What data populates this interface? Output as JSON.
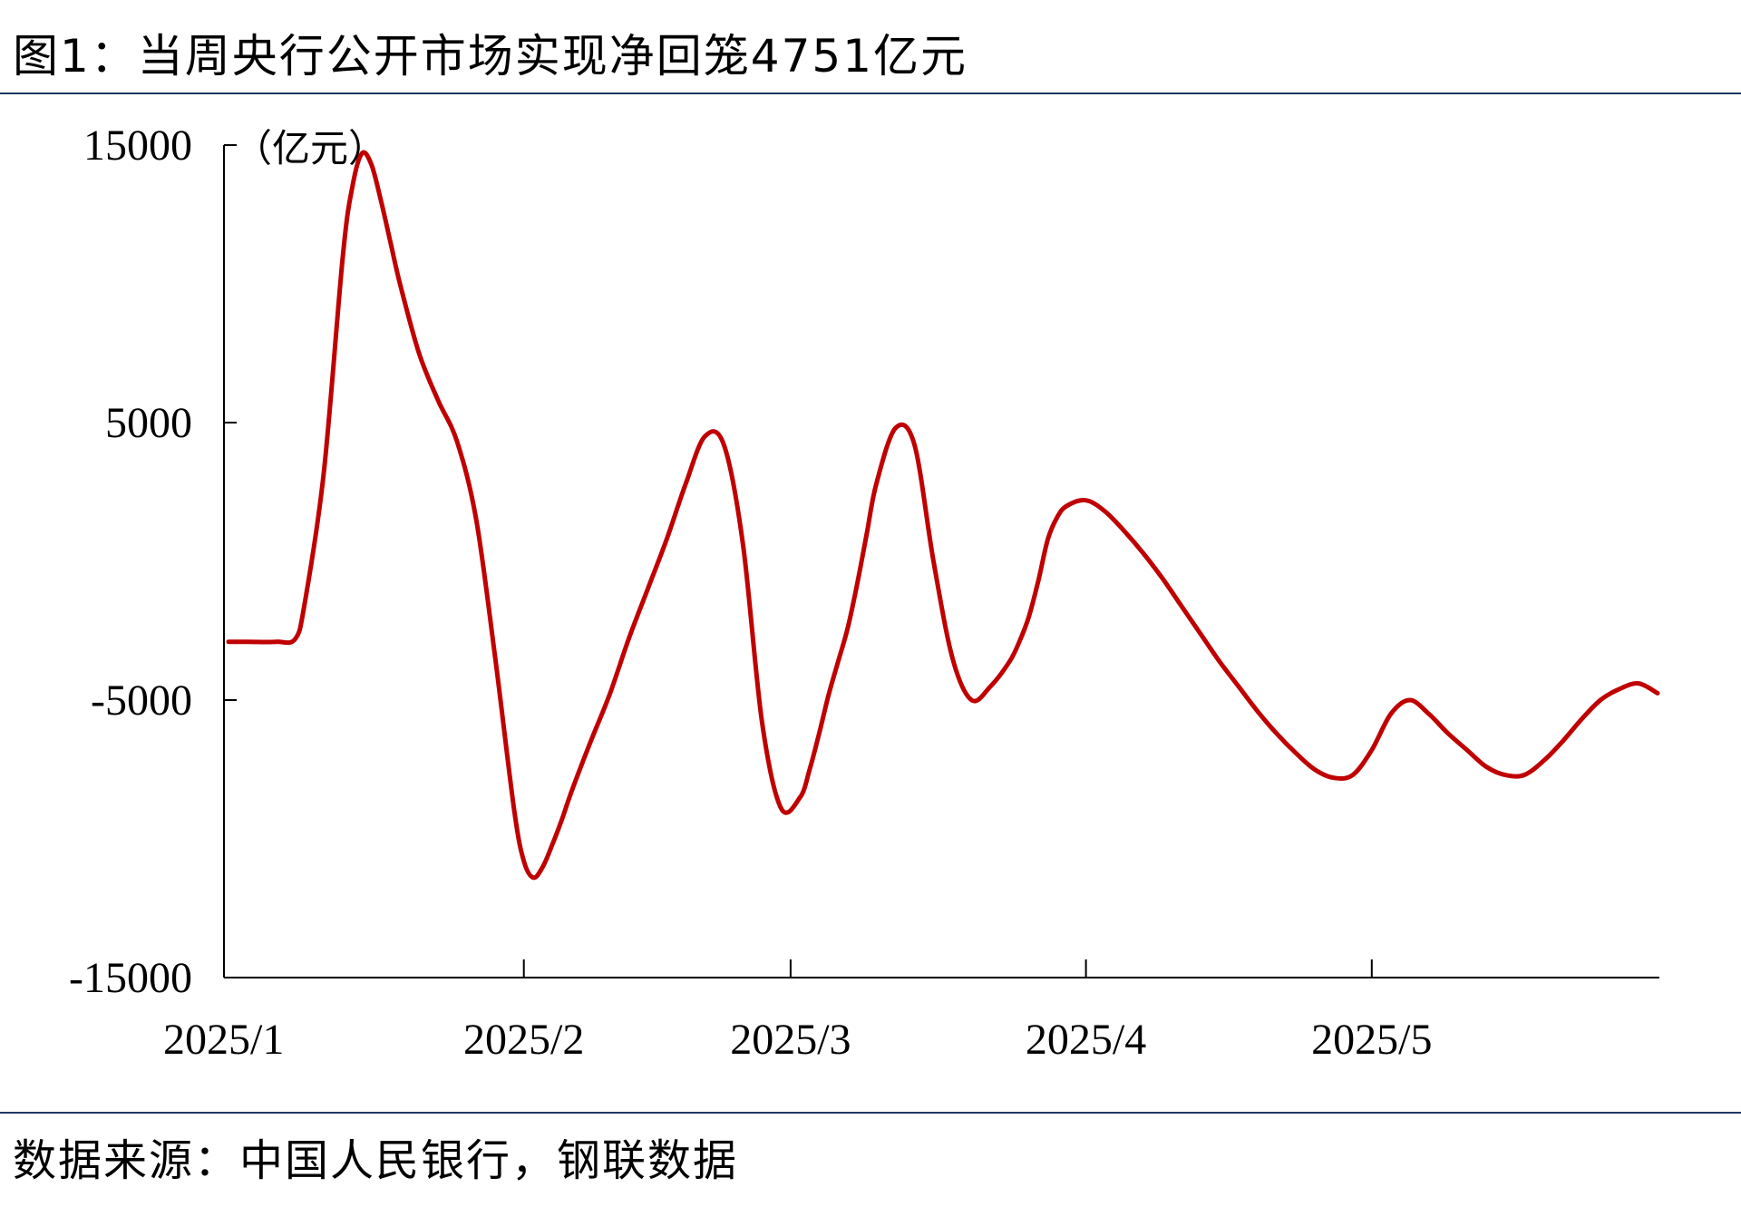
{
  "title": "图1：当周央行公开市场实现净回笼4751亿元",
  "source": "数据来源：中国人民银行，钢联数据",
  "chart_data": {
    "type": "line",
    "title": "图1：当周央行公开市场实现净回笼4751亿元",
    "ylabel": "（亿元）",
    "xlabel": "",
    "ylim": [
      -15000,
      15000
    ],
    "yticks": [
      15000,
      5000,
      -5000,
      -15000
    ],
    "xticks": [
      "2025/1",
      "2025/2",
      "2025/3",
      "2025/4",
      "2025/5"
    ],
    "x_range_days": [
      0,
      150
    ],
    "grid": false,
    "line_color": "#c00000",
    "series": [
      {
        "x": [
          0,
          2,
          5,
          7,
          8,
          10,
          12,
          13,
          14,
          15,
          16,
          17,
          18,
          20,
          22,
          24,
          26,
          28,
          30,
          31,
          32,
          33,
          34,
          35,
          36,
          38,
          40,
          42,
          44,
          46,
          48,
          50,
          52,
          54,
          56,
          58,
          60,
          61,
          62,
          63,
          64,
          65,
          66,
          67,
          68,
          70,
          72,
          74,
          76,
          78,
          80,
          82,
          83,
          84,
          85,
          86,
          87,
          88,
          90,
          92,
          94,
          96,
          98,
          100,
          102,
          104,
          106,
          108,
          110,
          112,
          114,
          116,
          118,
          120,
          122,
          124,
          126,
          128,
          130,
          132,
          134,
          136,
          138,
          140,
          142,
          144,
          146,
          148,
          150
        ],
        "y": [
          -2900,
          -2900,
          -2900,
          -2800,
          -1500,
          3200,
          11000,
          13500,
          14700,
          14300,
          13000,
          11500,
          10000,
          7500,
          5800,
          4300,
          1500,
          -3500,
          -9000,
          -10800,
          -11400,
          -11000,
          -10200,
          -9300,
          -8300,
          -6500,
          -4800,
          -2800,
          -1000,
          800,
          2800,
          4500,
          4200,
          600,
          -5800,
          -8900,
          -8500,
          -7500,
          -6200,
          -4800,
          -3600,
          -2400,
          -800,
          1000,
          2800,
          4800,
          4200,
          0,
          -3500,
          -5000,
          -4500,
          -3600,
          -2900,
          -2000,
          -700,
          800,
          1600,
          2000,
          2200,
          1800,
          1100,
          300,
          -600,
          -1600,
          -2600,
          -3600,
          -4500,
          -5400,
          -6200,
          -6900,
          -7500,
          -7800,
          -7700,
          -6800,
          -5500,
          -5000,
          -5500,
          -6200,
          -6800,
          -7400,
          -7700,
          -7700,
          -7200,
          -6500,
          -5700,
          -5000,
          -4600,
          -4400,
          -4751
        ]
      }
    ]
  }
}
